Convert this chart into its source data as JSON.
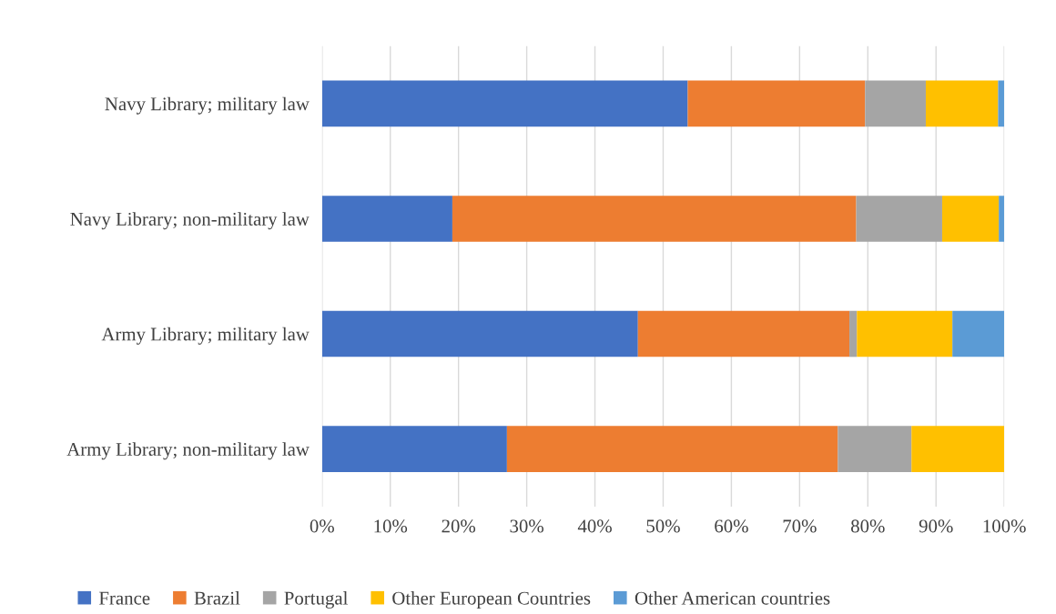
{
  "chart_data": {
    "type": "bar",
    "orientation": "horizontal",
    "stacked": true,
    "categories": [
      "Navy Library; military law",
      "Navy Library; non-military law",
      "Army Library; military law",
      "Army Library; non-military law"
    ],
    "series": [
      {
        "name": "France",
        "color": "#4472c4",
        "values": [
          53.6,
          19.1,
          46.3,
          27.1
        ]
      },
      {
        "name": "Brazil",
        "color": "#ed7d31",
        "values": [
          26.0,
          59.2,
          31.0,
          48.5
        ]
      },
      {
        "name": "Portugal",
        "color": "#a5a5a5",
        "values": [
          8.9,
          12.6,
          1.1,
          10.8
        ]
      },
      {
        "name": "Other European Countries",
        "color": "#ffc000",
        "values": [
          10.6,
          8.3,
          14.0,
          13.6
        ]
      },
      {
        "name": "Other American countries",
        "color": "#5b9bd5",
        "values": [
          0.9,
          0.8,
          7.6,
          0
        ]
      }
    ],
    "xlim": [
      0,
      100
    ],
    "xticks": [
      {
        "value": 0,
        "label": "0%"
      },
      {
        "value": 10,
        "label": "10%"
      },
      {
        "value": 20,
        "label": "20%"
      },
      {
        "value": 30,
        "label": "30%"
      },
      {
        "value": 40,
        "label": "40%"
      },
      {
        "value": 50,
        "label": "50%"
      },
      {
        "value": 60,
        "label": "60%"
      },
      {
        "value": 70,
        "label": "70%"
      },
      {
        "value": 80,
        "label": "80%"
      },
      {
        "value": 90,
        "label": "90%"
      },
      {
        "value": 100,
        "label": "100%"
      }
    ],
    "grid": "x",
    "legend": "bottom"
  }
}
